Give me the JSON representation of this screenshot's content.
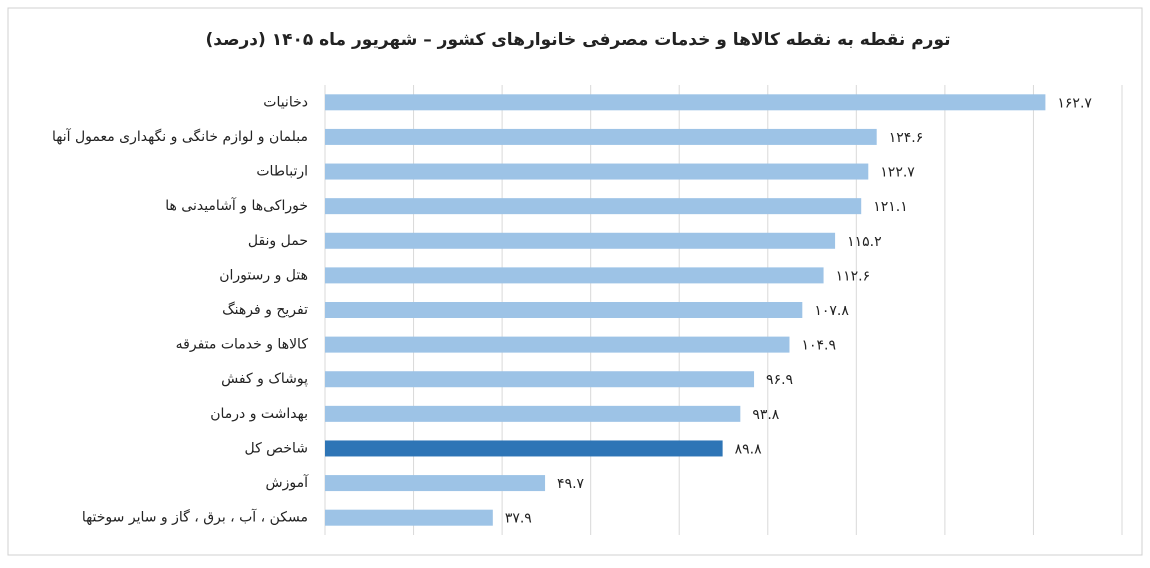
{
  "chart_data": {
    "type": "bar",
    "orientation": "horizontal",
    "title": "تورم نقطه به نقطه کالاها و خدمات مصرفی خانوارهای کشور – شهریور ماه ۱۴۰۵ (درصد)",
    "categories": [
      "دخانیات",
      "مبلمان و لوازم خانگی و نگهداری معمول آنها",
      "ارتباطات",
      "خوراکی‌ها و آشامیدنی ها",
      "حمل ونقل",
      "هتل و رستوران",
      "تفریح و فرهنگ",
      "کالاها و خدمات متفرقه",
      "پوشاک و کفش",
      "بهداشت و درمان",
      "شاخص کل",
      "آموزش",
      "مسکن ، آب ، برق ، گاز و سایر سوختها"
    ],
    "values": [
      162.7,
      124.6,
      122.7,
      121.1,
      115.2,
      112.6,
      107.8,
      104.9,
      96.9,
      93.8,
      89.8,
      49.7,
      37.9
    ],
    "value_labels": [
      "۱۶۲.۷",
      "۱۲۴.۶",
      "۱۲۲.۷",
      "۱۲۱.۱",
      "۱۱۵.۲",
      "۱۱۲.۶",
      "۱۰۷.۸",
      "۱۰۴.۹",
      "۹۶.۹",
      "۹۳.۸",
      "۸۹.۸",
      "۴۹.۷",
      "۳۷.۹"
    ],
    "colors": [
      "#9dc3e6",
      "#9dc3e6",
      "#9dc3e6",
      "#9dc3e6",
      "#9dc3e6",
      "#9dc3e6",
      "#9dc3e6",
      "#9dc3e6",
      "#9dc3e6",
      "#9dc3e6",
      "#2e75b6",
      "#9dc3e6",
      "#9dc3e6"
    ],
    "xlim": [
      0,
      180
    ],
    "xticks": [
      0,
      20,
      40,
      60,
      80,
      100,
      120,
      140,
      160,
      180
    ],
    "grid": true
  }
}
